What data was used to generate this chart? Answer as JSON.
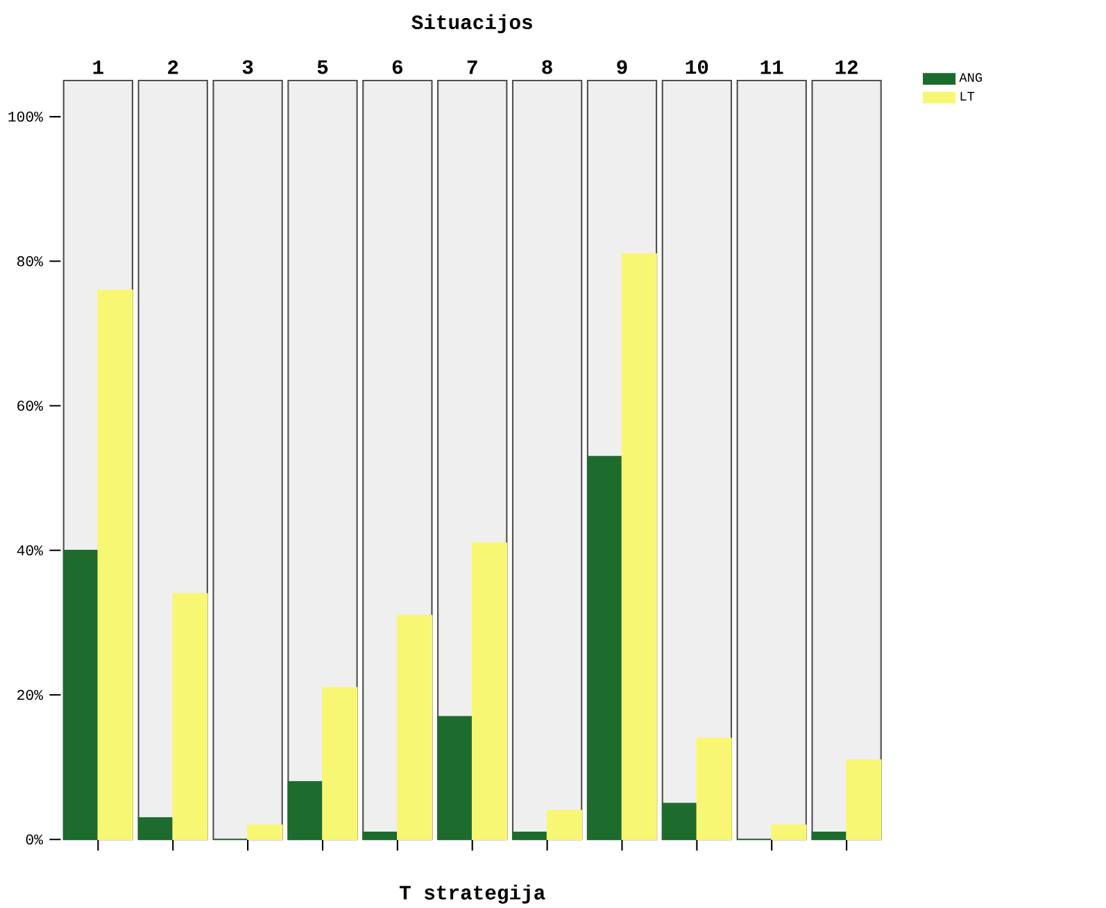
{
  "chart_data": {
    "type": "bar",
    "title": "Situacijos",
    "xlabel": "T strategija",
    "categories": [
      "1",
      "2",
      "3",
      "5",
      "6",
      "7",
      "8",
      "9",
      "10",
      "11",
      "12"
    ],
    "series": [
      {
        "name": "ANG",
        "color": "#1e6b2e",
        "values": [
          40,
          3,
          0,
          8,
          1,
          17,
          1,
          53,
          5,
          0,
          1
        ]
      },
      {
        "name": "LT",
        "color": "#f8f774",
        "values": [
          76,
          34,
          2,
          21,
          31,
          41,
          4,
          81,
          14,
          2,
          11
        ]
      }
    ],
    "ylim": [
      0,
      105
    ],
    "yticks": [
      {
        "value": 0,
        "label": "0%"
      },
      {
        "value": 20,
        "label": "20%"
      },
      {
        "value": 40,
        "label": "40%"
      },
      {
        "value": 60,
        "label": "60%"
      },
      {
        "value": 80,
        "label": "80%"
      },
      {
        "value": 100,
        "label": "100%"
      }
    ],
    "legend": "top right"
  }
}
